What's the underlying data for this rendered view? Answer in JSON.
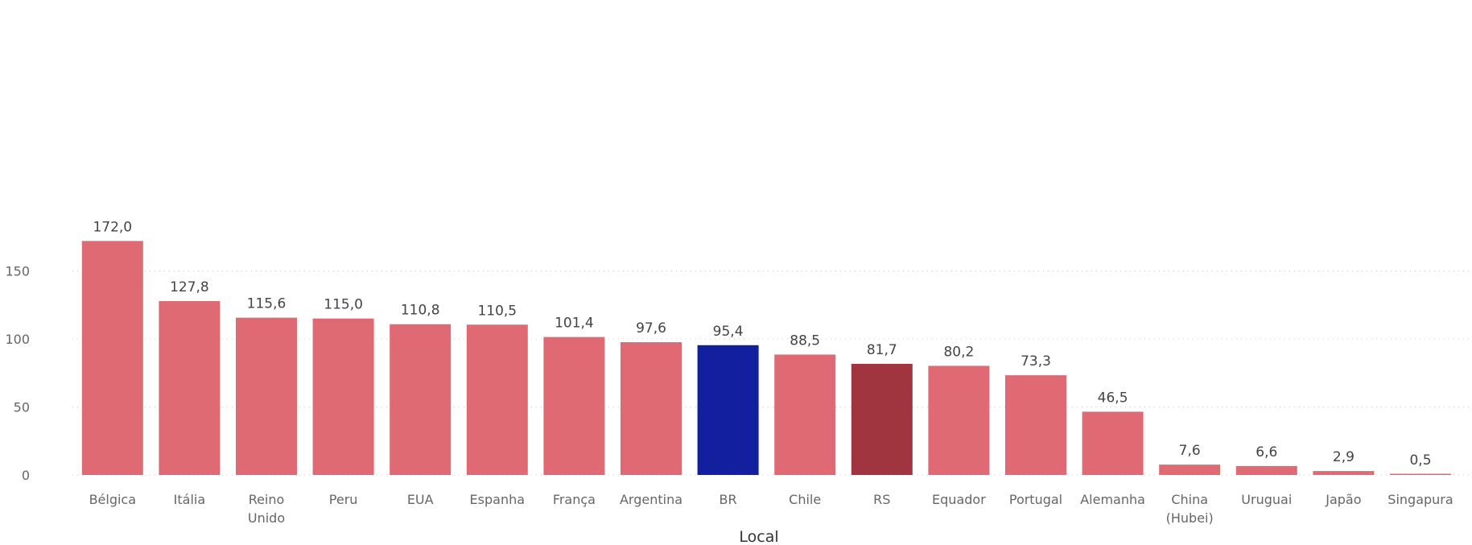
{
  "chart_data": {
    "type": "bar",
    "xlabel": "Local",
    "ylabel": "",
    "ylim": [
      0,
      172
    ],
    "y_ticks": [
      "0",
      "50",
      "100",
      "150"
    ],
    "grid": true,
    "categories": [
      [
        "Bélgica"
      ],
      [
        "Itália"
      ],
      [
        "Reino",
        "Unido"
      ],
      [
        "Peru"
      ],
      [
        "EUA"
      ],
      [
        "Espanha"
      ],
      [
        "França"
      ],
      [
        "Argentina"
      ],
      [
        "BR"
      ],
      [
        "Chile"
      ],
      [
        "RS"
      ],
      [
        "Equador"
      ],
      [
        "Portugal"
      ],
      [
        "Alemanha"
      ],
      [
        "China",
        "(Hubei)"
      ],
      [
        "Uruguai"
      ],
      [
        "Japão"
      ],
      [
        "Singapura"
      ]
    ],
    "values": [
      172.0,
      127.8,
      115.6,
      115.0,
      110.8,
      110.5,
      101.4,
      97.6,
      95.4,
      88.5,
      81.7,
      80.2,
      73.3,
      46.5,
      7.6,
      6.6,
      2.9,
      0.5
    ],
    "value_labels": [
      "172,0",
      "127,8",
      "115,6",
      "115,0",
      "110,8",
      "110,5",
      "101,4",
      "97,6",
      "95,4",
      "88,5",
      "81,7",
      "80,2",
      "73,3",
      "46,5",
      "7,6",
      "6,6",
      "2,9",
      "0,5"
    ],
    "colors": {
      "default": "#df6a73",
      "BR": "#1220a0",
      "RS": "#a0343f",
      "top_label_bg": "#f6d9dc"
    }
  }
}
